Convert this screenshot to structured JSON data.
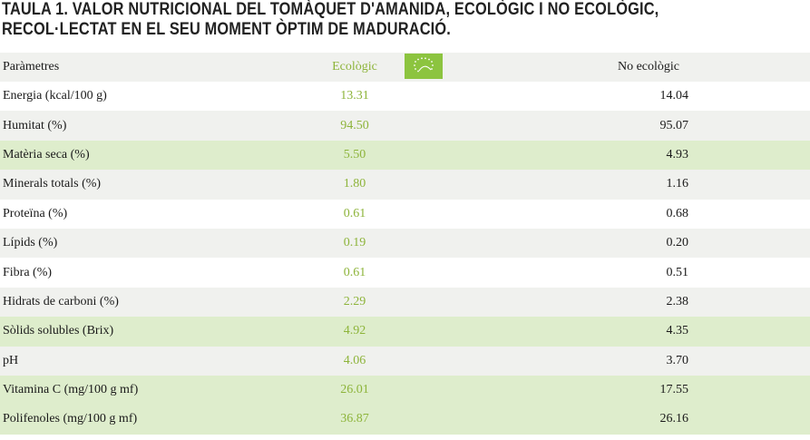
{
  "title": {
    "line1": "Taula 1. Valor nutricional del tomàquet d'amanida, ecològic i no ecològic,",
    "line2": "recol·lectat en el seu moment òptim de maduració."
  },
  "colors": {
    "eco_text": "#8db43a",
    "green_row": "#deedcc",
    "gray_row": "#f0f1ee",
    "logo_green": "#8cc43f"
  },
  "header": {
    "param": "Paràmetres",
    "eco": "Ecològic",
    "noneco": "No ecològic",
    "logo_icon": "eu-organic-leaf-logo"
  },
  "rows": [
    {
      "param": "Energia  (kcal/100 g)",
      "eco": "13.31",
      "noneco": "14.04",
      "shade": "white"
    },
    {
      "param": "Humitat (%)",
      "eco": "94.50",
      "noneco": "95.07",
      "shade": "gray"
    },
    {
      "param": "Matèria seca (%)",
      "eco": "5.50",
      "noneco": "4.93",
      "shade": "green"
    },
    {
      "param": "Minerals totals (%)",
      "eco": "1.80",
      "noneco": "1.16",
      "shade": "gray"
    },
    {
      "param": "Proteïna (%)",
      "eco": "0.61",
      "noneco": "0.68",
      "shade": "white"
    },
    {
      "param": "Lípids (%)",
      "eco": "0.19",
      "noneco": "0.20",
      "shade": "gray"
    },
    {
      "param": "Fibra (%)",
      "eco": "0.61",
      "noneco": "0.51",
      "shade": "white"
    },
    {
      "param": "Hidrats de carboni (%)",
      "eco": "2.29",
      "noneco": "2.38",
      "shade": "gray"
    },
    {
      "param": "Sòlids solubles (Brix)",
      "eco": "4.92",
      "noneco": "4.35",
      "shade": "green"
    },
    {
      "param": "pH",
      "eco": "4.06",
      "noneco": "3.70",
      "shade": "gray"
    },
    {
      "param": "Vitamina C (mg/100 g mf)",
      "eco": "26.01",
      "noneco": "17.55",
      "shade": "green"
    },
    {
      "param": "Polifenoles (mg/100 g mf)",
      "eco": "36.87",
      "noneco": "26.16",
      "shade": "green"
    }
  ]
}
